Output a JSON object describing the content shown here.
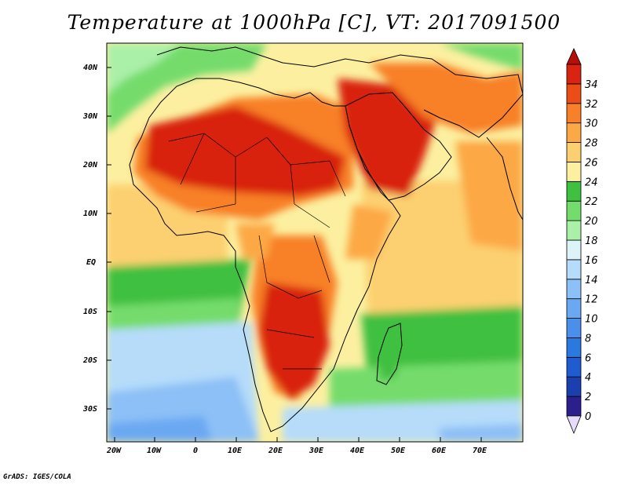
{
  "title": "Temperature at 1000hPa [C], VT: 2017091500",
  "credit": "GrADS: IGES/COLA",
  "map": {
    "lat_labels": [
      "40N",
      "30N",
      "20N",
      "10N",
      "EQ",
      "10S",
      "20S",
      "30S"
    ],
    "lon_labels": [
      "20W",
      "10W",
      "0",
      "10E",
      "20E",
      "30E",
      "40E",
      "50E",
      "60E",
      "70E"
    ],
    "lon_range": [
      -22,
      80
    ],
    "lat_range": [
      -37,
      45
    ]
  },
  "colorbar": {
    "levels": [
      "0",
      "2",
      "4",
      "6",
      "8",
      "10",
      "12",
      "14",
      "16",
      "18",
      "20",
      "22",
      "24",
      "26",
      "28",
      "30",
      "32",
      "34"
    ],
    "colors": [
      "#2a1f8c",
      "#1c3fb0",
      "#1e5cd0",
      "#2a78e0",
      "#4a90ea",
      "#6aa8f2",
      "#8cc0f6",
      "#b6dcfa",
      "#dcf4f8",
      "#aaf0a8",
      "#74dc6c",
      "#40c040",
      "#fcf0a0",
      "#fcd070",
      "#fca844",
      "#f88028",
      "#ec4c16",
      "#d82410",
      "#b41008"
    ],
    "under_color": "#e6dcfa"
  },
  "field_colors": {
    "ocean_cool": "#6aa8f2",
    "ocean_mild": "#b6dcfa",
    "ocean_green": "#40c040",
    "ocean_warm": "#fcf0a0",
    "ocean_orange": "#fcd070",
    "land_hot": "#d82410",
    "land_very_hot": "#b41008",
    "land_warm": "#f88028",
    "land_mild": "#fca844"
  }
}
